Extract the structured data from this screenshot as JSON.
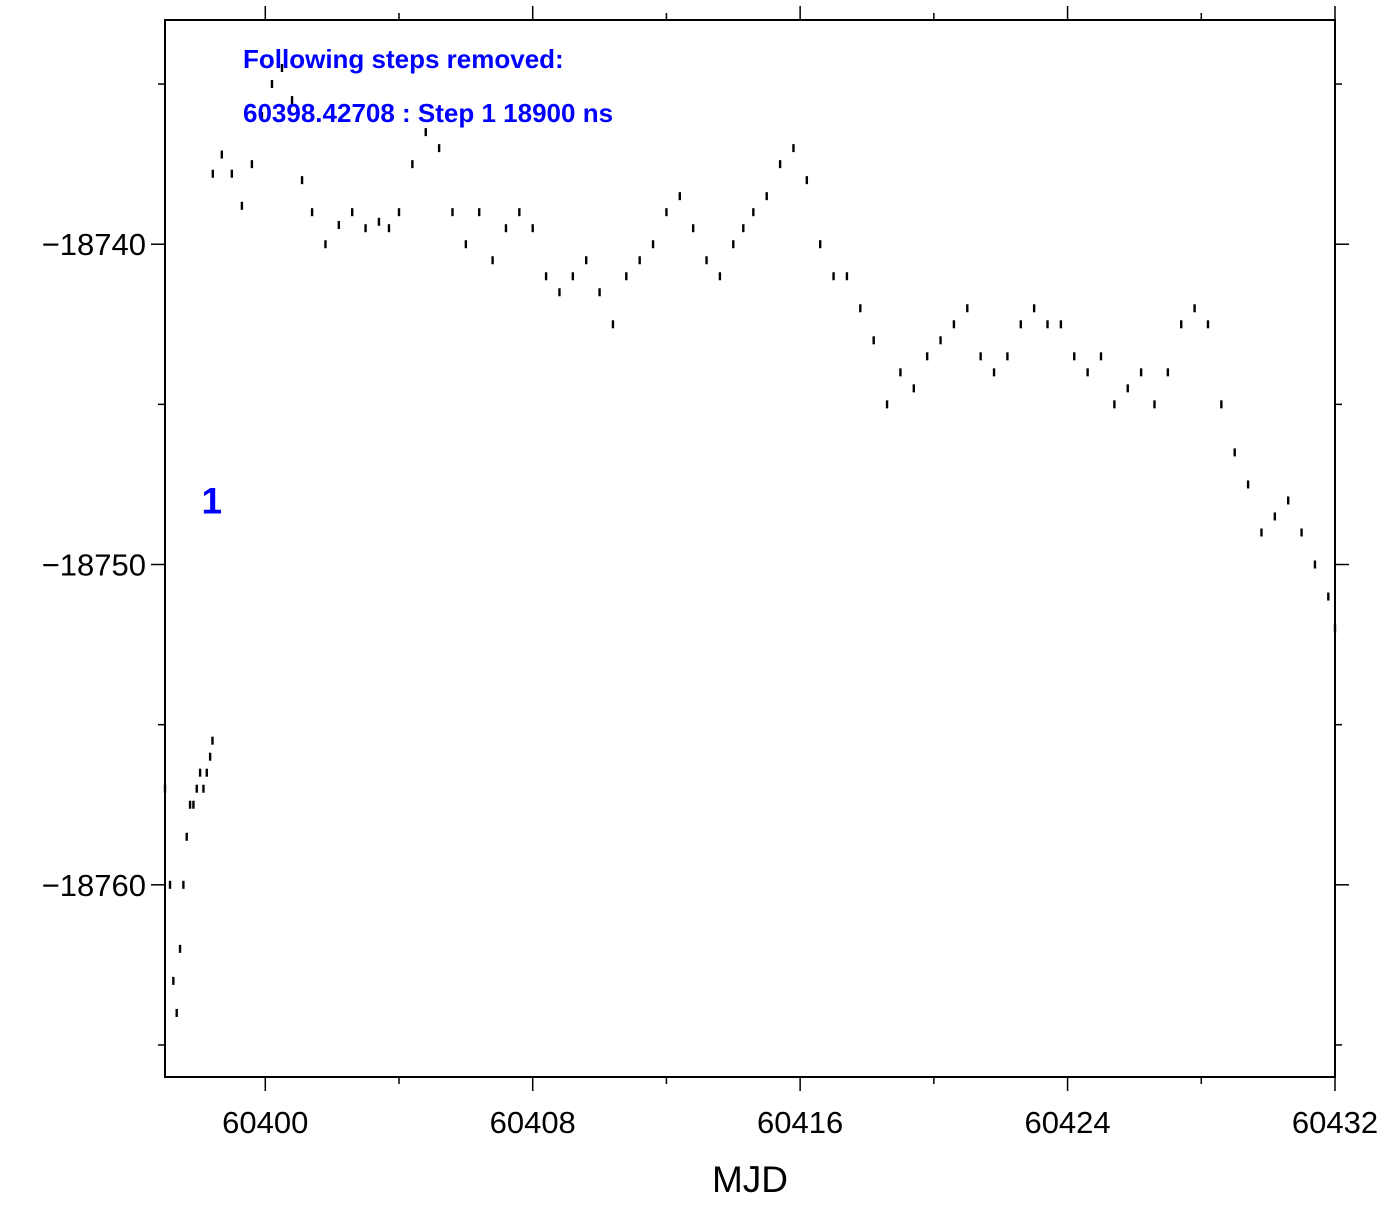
{
  "chart_data": {
    "type": "scatter",
    "xlabel": "MJD",
    "ylabel": "",
    "xlim": [
      60397,
      60432
    ],
    "ylim": [
      -18766,
      -18733
    ],
    "x_ticks": [
      60400,
      60408,
      60416,
      60424,
      60432
    ],
    "x_tick_labels": [
      "60400",
      "60408",
      "60416",
      "60424",
      "60432"
    ],
    "x_minor_ticks": [
      60404,
      60412,
      60420,
      60428
    ],
    "y_ticks": [
      -18740,
      -18750,
      -18760
    ],
    "y_tick_labels": [
      "−18740",
      "−18750",
      "−18760"
    ],
    "y_minor_ticks": [
      -18735,
      -18745,
      -18755,
      -18765
    ],
    "grid": false,
    "series": [
      {
        "segment": "before-step",
        "color": "#000000",
        "x": [
          60397.0,
          60397.15,
          60397.25,
          60397.35,
          60397.45,
          60397.55,
          60397.65,
          60397.75,
          60397.85,
          60397.95,
          60398.05,
          60398.15,
          60398.25,
          60398.35,
          60398.42
        ],
        "y": [
          -18757,
          -18760,
          -18763,
          -18764,
          -18762,
          -18760,
          -18758.5,
          -18757.5,
          -18757.5,
          -18757,
          -18756.5,
          -18757,
          -18756.5,
          -18756,
          -18755.5
        ]
      },
      {
        "segment": "after-step",
        "color": "#000000",
        "x": [
          60398.43,
          60398.7,
          60399.0,
          60399.3,
          60399.6,
          60399.9,
          60400.2,
          60400.5,
          60400.8,
          60401.1,
          60401.4,
          60401.8,
          60402.2,
          60402.6,
          60403.0,
          60403.4,
          60403.7,
          60404.0,
          60404.4,
          60404.8,
          60405.2,
          60405.6,
          60406.0,
          60406.4,
          60406.8,
          60407.2,
          60407.6,
          60408.0,
          60408.4,
          60408.8,
          60409.2,
          60409.6,
          60410.0,
          60410.4,
          60410.8,
          60411.2,
          60411.6,
          60412.0,
          60412.4,
          60412.8,
          60413.2,
          60413.6,
          60414.0,
          60414.3,
          60414.6,
          60415.0,
          60415.4,
          60415.8,
          60416.2,
          60416.6,
          60417.0,
          60417.4,
          60417.8,
          60418.2,
          60418.6,
          60419.0,
          60419.4,
          60419.8,
          60420.2,
          60420.6,
          60421.0,
          60421.4,
          60421.8,
          60422.2,
          60422.6,
          60423.0,
          60423.4,
          60423.8,
          60424.2,
          60424.6,
          60425.0,
          60425.4,
          60425.8,
          60426.2,
          60426.6,
          60427.0,
          60427.4,
          60427.8,
          60428.2,
          60428.6,
          60429.0,
          60429.4,
          60429.8,
          60430.2,
          60430.6,
          60431.0,
          60431.4,
          60431.8,
          60432.0
        ],
        "y": [
          -18737.8,
          -18737.2,
          -18737.8,
          -18738.8,
          -18737.5,
          -18736.0,
          -18735.0,
          -18734.5,
          -18735.5,
          -18738.0,
          -18739.0,
          -18740.0,
          -18739.4,
          -18739.0,
          -18739.5,
          -18739.3,
          -18739.5,
          -18739.0,
          -18737.5,
          -18736.5,
          -18737.0,
          -18739.0,
          -18740.0,
          -18739.0,
          -18740.5,
          -18739.5,
          -18739.0,
          -18739.5,
          -18741.0,
          -18741.5,
          -18741.0,
          -18740.5,
          -18741.5,
          -18742.5,
          -18741.0,
          -18740.5,
          -18740.0,
          -18739.0,
          -18738.5,
          -18739.5,
          -18740.5,
          -18741.0,
          -18740.0,
          -18739.5,
          -18739.0,
          -18738.5,
          -18737.5,
          -18737.0,
          -18738.0,
          -18740.0,
          -18741.0,
          -18741.0,
          -18742.0,
          -18743.0,
          -18745.0,
          -18744.0,
          -18744.5,
          -18743.5,
          -18743.0,
          -18742.5,
          -18742.0,
          -18743.5,
          -18744.0,
          -18743.5,
          -18742.5,
          -18742.0,
          -18742.5,
          -18742.5,
          -18743.5,
          -18744.0,
          -18743.5,
          -18745.0,
          -18744.5,
          -18744.0,
          -18745.0,
          -18744.0,
          -18742.5,
          -18742.0,
          -18742.5,
          -18745.0,
          -18746.5,
          -18747.5,
          -18749.0,
          -18748.5,
          -18748.0,
          -18749.0,
          -18750.0,
          -18751.0,
          -18752.0
        ]
      }
    ],
    "annotations": [
      {
        "text": "Following steps removed:",
        "color": "#0000ff"
      },
      {
        "text": "60398.42708 : Step 1 18900 ns",
        "color": "#0000ff"
      },
      {
        "text": "1",
        "x": 60398.4,
        "y": -18748,
        "color": "#0000ff"
      }
    ]
  }
}
